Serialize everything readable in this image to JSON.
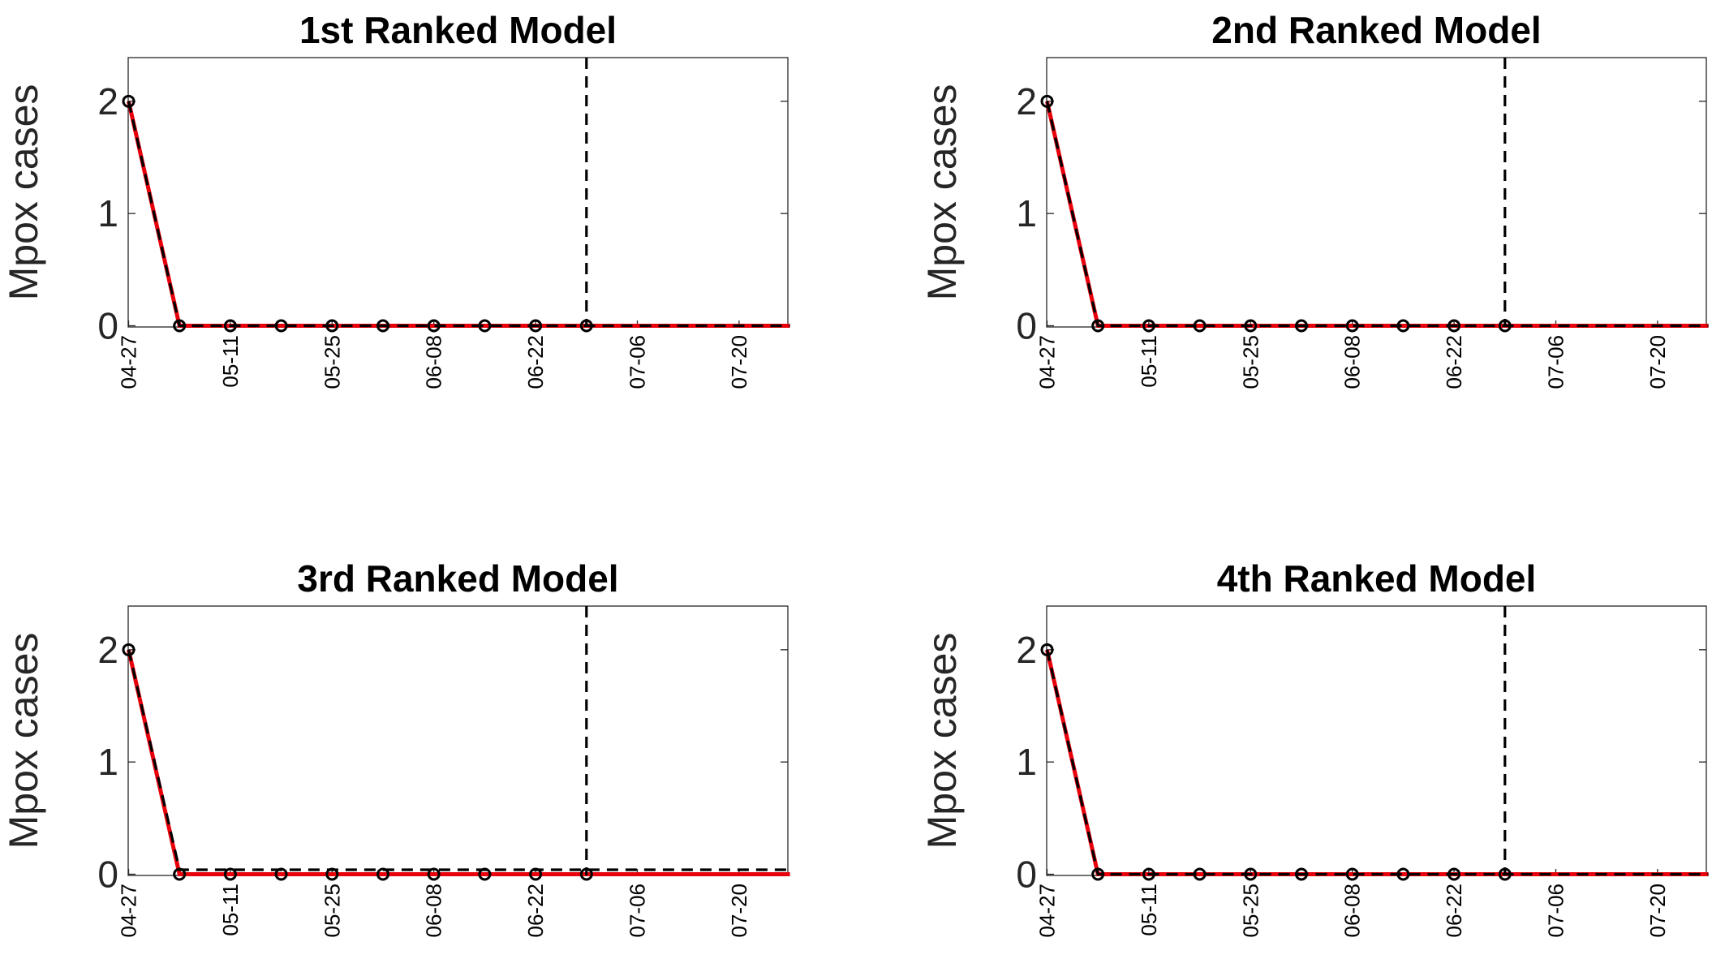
{
  "colors": {
    "observed": "#000000",
    "fit": "#e8000b",
    "fit_dashed": "#000000",
    "divider": "#000000",
    "axes": "#262626"
  },
  "chart_data": [
    {
      "type": "line",
      "title": "1st Ranked Model",
      "ylabel": "Mpox cases",
      "xlabel": "",
      "ylim": [
        0,
        2.4
      ],
      "yticks": [
        0,
        1,
        2
      ],
      "x": [
        "04-27",
        "05-04",
        "05-11",
        "05-18",
        "05-25",
        "06-01",
        "06-08",
        "06-15",
        "06-22",
        "06-29",
        "07-06",
        "07-13",
        "07-20",
        "07-27"
      ],
      "xtick_labels": [
        "04-27",
        "05-11",
        "05-25",
        "06-08",
        "06-22",
        "07-06",
        "07-20"
      ],
      "forecast_start": "06-29",
      "series": [
        {
          "role": "observed",
          "style": "markers",
          "x": [
            "04-27",
            "05-04",
            "05-11",
            "05-18",
            "05-25",
            "06-01",
            "06-08",
            "06-15",
            "06-22",
            "06-29"
          ],
          "values": [
            2,
            0,
            0,
            0,
            0,
            0,
            0,
            0,
            0,
            0
          ]
        },
        {
          "role": "fit",
          "style": "solid-red",
          "values": [
            2,
            0,
            0,
            0,
            0,
            0,
            0,
            0,
            0,
            0,
            0,
            0,
            0,
            0
          ]
        },
        {
          "role": "fit-dashed",
          "style": "dashed-black",
          "values": [
            2,
            0,
            0,
            0,
            0,
            0,
            0,
            0,
            0,
            0,
            0,
            0,
            0,
            0
          ]
        }
      ],
      "grid": false
    },
    {
      "type": "line",
      "title": "2nd Ranked Model",
      "ylabel": "Mpox cases",
      "xlabel": "",
      "ylim": [
        0,
        2.4
      ],
      "yticks": [
        0,
        1,
        2
      ],
      "x": [
        "04-27",
        "05-04",
        "05-11",
        "05-18",
        "05-25",
        "06-01",
        "06-08",
        "06-15",
        "06-22",
        "06-29",
        "07-06",
        "07-13",
        "07-20",
        "07-27"
      ],
      "xtick_labels": [
        "04-27",
        "05-11",
        "05-25",
        "06-08",
        "06-22",
        "07-06",
        "07-20"
      ],
      "forecast_start": "06-29",
      "series": [
        {
          "role": "observed",
          "style": "markers",
          "x": [
            "04-27",
            "05-04",
            "05-11",
            "05-18",
            "05-25",
            "06-01",
            "06-08",
            "06-15",
            "06-22",
            "06-29"
          ],
          "values": [
            2,
            0,
            0,
            0,
            0,
            0,
            0,
            0,
            0,
            0
          ]
        },
        {
          "role": "fit",
          "style": "solid-red",
          "values": [
            2,
            0,
            0,
            0,
            0,
            0,
            0,
            0,
            0,
            0,
            0,
            0,
            0,
            0
          ]
        },
        {
          "role": "fit-dashed",
          "style": "dashed-black",
          "values": [
            2,
            0,
            0,
            0,
            0,
            0,
            0,
            0,
            0,
            0,
            0,
            0,
            0,
            0
          ]
        }
      ],
      "grid": false
    },
    {
      "type": "line",
      "title": "3rd Ranked Model",
      "ylabel": "Mpox cases",
      "xlabel": "",
      "ylim": [
        0,
        2.4
      ],
      "yticks": [
        0,
        1,
        2
      ],
      "x": [
        "04-27",
        "05-04",
        "05-11",
        "05-18",
        "05-25",
        "06-01",
        "06-08",
        "06-15",
        "06-22",
        "06-29",
        "07-06",
        "07-13",
        "07-20",
        "07-27"
      ],
      "xtick_labels": [
        "04-27",
        "05-11",
        "05-25",
        "06-08",
        "06-22",
        "07-06",
        "07-20"
      ],
      "forecast_start": "06-29",
      "series": [
        {
          "role": "observed",
          "style": "markers",
          "x": [
            "04-27",
            "05-04",
            "05-11",
            "05-18",
            "05-25",
            "06-01",
            "06-08",
            "06-15",
            "06-22",
            "06-29"
          ],
          "values": [
            2,
            0,
            0,
            0,
            0,
            0,
            0,
            0,
            0,
            0
          ]
        },
        {
          "role": "fit",
          "style": "solid-red",
          "values": [
            2,
            0,
            0,
            0,
            0,
            0,
            0,
            0,
            0,
            0,
            0,
            0,
            0,
            0
          ]
        },
        {
          "role": "fit-dashed",
          "style": "dashed-black",
          "values": [
            2,
            0.04,
            0.04,
            0.04,
            0.04,
            0.04,
            0.04,
            0.04,
            0.04,
            0.04,
            0.04,
            0.04,
            0.04,
            0.04
          ]
        }
      ],
      "grid": false
    },
    {
      "type": "line",
      "title": "4th Ranked Model",
      "ylabel": "Mpox cases",
      "xlabel": "",
      "ylim": [
        0,
        2.4
      ],
      "yticks": [
        0,
        1,
        2
      ],
      "x": [
        "04-27",
        "05-04",
        "05-11",
        "05-18",
        "05-25",
        "06-01",
        "06-08",
        "06-15",
        "06-22",
        "06-29",
        "07-06",
        "07-13",
        "07-20",
        "07-27"
      ],
      "xtick_labels": [
        "04-27",
        "05-11",
        "05-25",
        "06-08",
        "06-22",
        "07-06",
        "07-20"
      ],
      "forecast_start": "06-29",
      "series": [
        {
          "role": "observed",
          "style": "markers",
          "x": [
            "04-27",
            "05-04",
            "05-11",
            "05-18",
            "05-25",
            "06-01",
            "06-08",
            "06-15",
            "06-22",
            "06-29"
          ],
          "values": [
            2,
            0,
            0,
            0,
            0,
            0,
            0,
            0,
            0,
            0
          ]
        },
        {
          "role": "fit",
          "style": "solid-red",
          "values": [
            2,
            0,
            0,
            0,
            0,
            0,
            0,
            0,
            0,
            0,
            0,
            0,
            0,
            0
          ]
        },
        {
          "role": "fit-dashed",
          "style": "dashed-black",
          "values": [
            2,
            0,
            0,
            0,
            0,
            0,
            0,
            0,
            0,
            0,
            0,
            0,
            0,
            0
          ]
        }
      ],
      "grid": false
    }
  ]
}
